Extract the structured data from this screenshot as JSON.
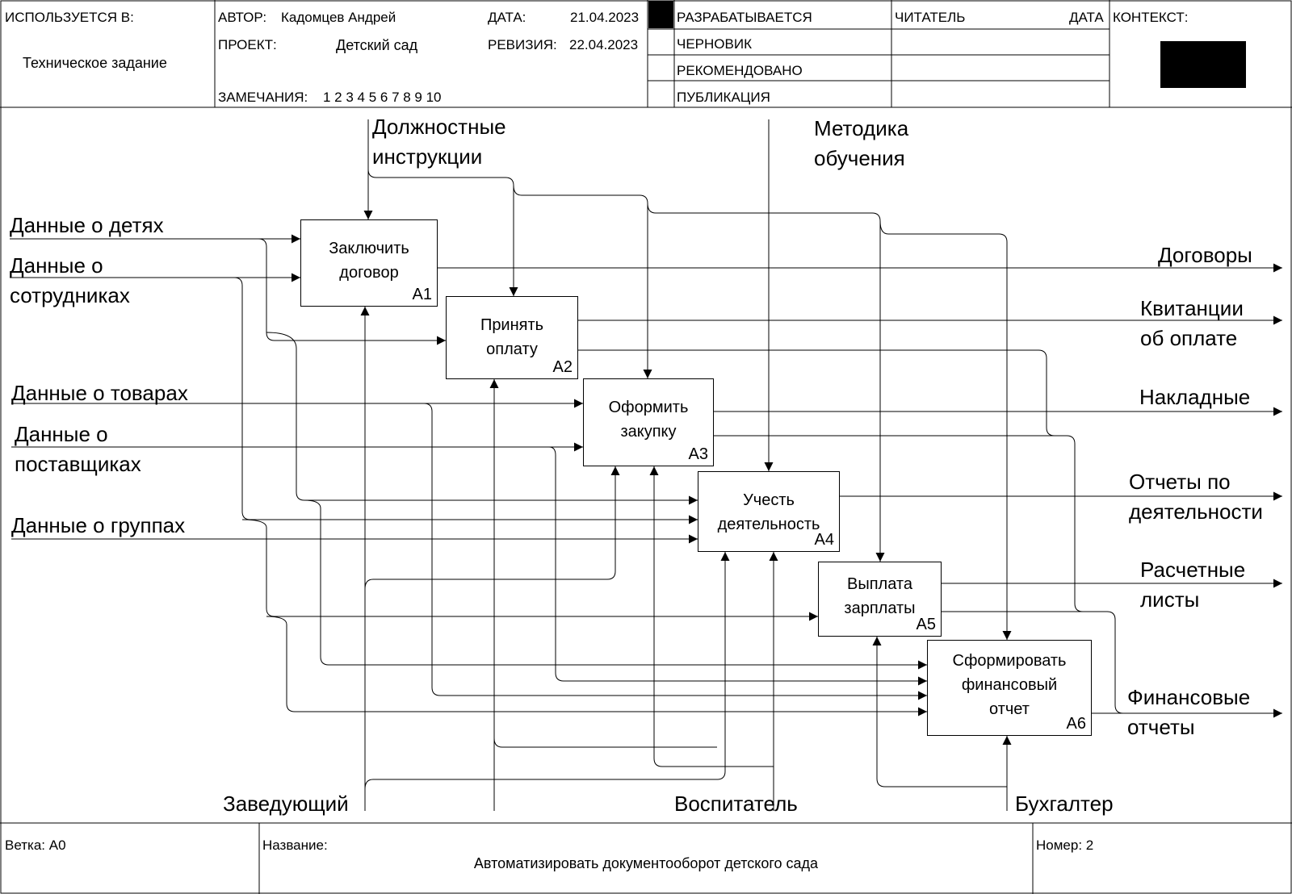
{
  "header": {
    "used_in_label": "ИСПОЛЬЗУЕТСЯ В:",
    "used_in_value": "Техническое задание",
    "author_label": "АВТОР:",
    "author_value": "Кадомцев Андрей",
    "project_label": "ПРОЕКТ:",
    "project_value": "Детский сад",
    "notes_label": "ЗАМЕЧАНИЯ:",
    "notes_value": "1 2 3 4 5 6 7 8 9 10",
    "date_label": "ДАТА:",
    "date_value": "21.04.2023",
    "revision_label": "РЕВИЗИЯ:",
    "revision_value": "22.04.2023",
    "status": [
      "РАЗРАБАТЫВАЕТСЯ",
      "ЧЕРНОВИК",
      "РЕКОМЕНДОВАНО",
      "ПУБЛИКАЦИЯ"
    ],
    "reader_label": "ЧИТАТЕЛЬ",
    "reader_date_label": "ДАТА",
    "context_label": "КОНТЕКСТ:"
  },
  "functions": [
    {
      "label_lines": [
        "Заключить",
        "договор"
      ],
      "number": "A1"
    },
    {
      "label_lines": [
        "Принять",
        "оплату"
      ],
      "number": "A2"
    },
    {
      "label_lines": [
        "Оформить",
        "закупку"
      ],
      "number": "A3"
    },
    {
      "label_lines": [
        "Учесть",
        "деятельность"
      ],
      "number": "A4"
    },
    {
      "label_lines": [
        "Выплата",
        "зарплаты"
      ],
      "number": "A5"
    },
    {
      "label_lines": [
        "Сформировать",
        "финансовый",
        "отчет"
      ],
      "number": "A6"
    }
  ],
  "inputs": [
    {
      "lines": [
        "Данные о детях"
      ]
    },
    {
      "lines": [
        "Данные о",
        "сотрудниках"
      ]
    },
    {
      "lines": [
        "Данные о товарах"
      ]
    },
    {
      "lines": [
        "Данные о",
        "поставщиках"
      ]
    },
    {
      "lines": [
        "Данные о группах"
      ]
    }
  ],
  "controls": [
    {
      "lines": [
        "Должностные",
        "инструкции"
      ]
    },
    {
      "lines": [
        "Методика",
        "обучения"
      ]
    }
  ],
  "outputs": [
    {
      "lines": [
        "Договоры"
      ]
    },
    {
      "lines": [
        "Квитанции",
        "об оплате"
      ]
    },
    {
      "lines": [
        "Накладные"
      ]
    },
    {
      "lines": [
        "Отчеты по",
        "деятельности"
      ]
    },
    {
      "lines": [
        "Расчетные",
        "листы"
      ]
    },
    {
      "lines": [
        "Финансовые",
        "отчеты"
      ]
    }
  ],
  "mechanisms": [
    {
      "lines": [
        "Заведующий"
      ]
    },
    {
      "lines": [
        "Воспитатель"
      ]
    },
    {
      "lines": [
        "Бухгалтер"
      ]
    }
  ],
  "footer": {
    "node_label": "Ветка:",
    "node_value": "A0",
    "title_label": "Название:",
    "title_value": "Автоматизировать документооборот детского сада",
    "number_label": "Номер:",
    "number_value": "2"
  }
}
